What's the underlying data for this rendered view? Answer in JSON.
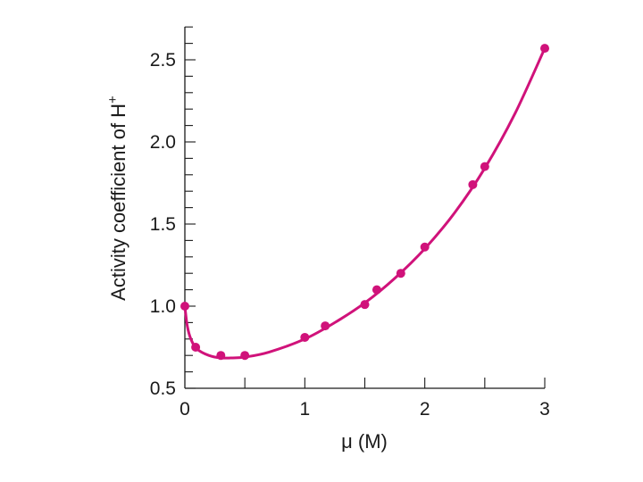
{
  "colors": {
    "series": "#d0127a",
    "axis": "#1a1a1a",
    "background": "#ffffff"
  },
  "chart_data": {
    "type": "scatter",
    "xlabel": "μ (M)",
    "ylabel_main": "Activity coefficient of H",
    "ylabel_sup": "+",
    "xlim": [
      0,
      3
    ],
    "ylim": [
      0.5,
      2.75
    ],
    "xticks": [
      0,
      1,
      2,
      3
    ],
    "xtick_labels": [
      "0",
      "1",
      "2",
      "3"
    ],
    "yticks": [
      0.5,
      1.0,
      1.5,
      2.0,
      2.5
    ],
    "ytick_labels": [
      "0.5",
      "1.0",
      "1.5",
      "2.0",
      "2.5"
    ],
    "x_minor_step": 0.5,
    "y_minor_step": 0.1,
    "grid": false,
    "legend": "none",
    "series": [
      {
        "points": [
          {
            "x": 0.0,
            "y": 1.0
          },
          {
            "x": 0.09,
            "y": 0.75
          },
          {
            "x": 0.3,
            "y": 0.7
          },
          {
            "x": 0.5,
            "y": 0.7
          },
          {
            "x": 1.0,
            "y": 0.81
          },
          {
            "x": 1.17,
            "y": 0.88
          },
          {
            "x": 1.5,
            "y": 1.01
          },
          {
            "x": 1.6,
            "y": 1.1
          },
          {
            "x": 1.8,
            "y": 1.2
          },
          {
            "x": 2.0,
            "y": 1.36
          },
          {
            "x": 2.4,
            "y": 1.74
          },
          {
            "x": 2.5,
            "y": 1.85
          },
          {
            "x": 3.0,
            "y": 2.57
          }
        ],
        "fit_curve": [
          {
            "x": 0.0,
            "y": 1.0
          },
          {
            "x": 0.02,
            "y": 0.88
          },
          {
            "x": 0.05,
            "y": 0.8
          },
          {
            "x": 0.1,
            "y": 0.74
          },
          {
            "x": 0.2,
            "y": 0.7
          },
          {
            "x": 0.3,
            "y": 0.685
          },
          {
            "x": 0.4,
            "y": 0.685
          },
          {
            "x": 0.5,
            "y": 0.69
          },
          {
            "x": 0.7,
            "y": 0.72
          },
          {
            "x": 1.0,
            "y": 0.8
          },
          {
            "x": 1.25,
            "y": 0.9
          },
          {
            "x": 1.5,
            "y": 1.02
          },
          {
            "x": 1.75,
            "y": 1.17
          },
          {
            "x": 2.0,
            "y": 1.35
          },
          {
            "x": 2.25,
            "y": 1.57
          },
          {
            "x": 2.5,
            "y": 1.84
          },
          {
            "x": 2.75,
            "y": 2.17
          },
          {
            "x": 3.0,
            "y": 2.57
          }
        ]
      }
    ]
  }
}
